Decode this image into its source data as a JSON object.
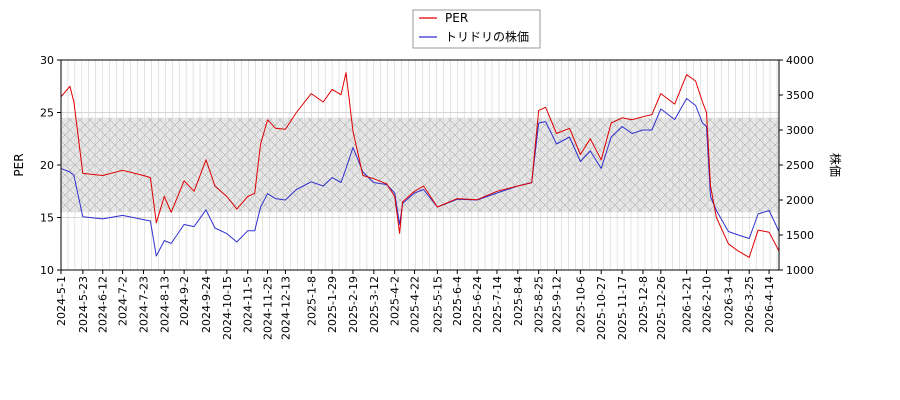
{
  "chart_data": {
    "type": "line",
    "legend": {
      "placement": "top-center",
      "entries": [
        "PER",
        "トリドリの株価"
      ]
    },
    "colors": {
      "PER": "#e00000",
      "price": "#3030d0",
      "band_fill": "#e6e6e6",
      "grid": "#c8c8c8"
    },
    "ylabel_left": "PER",
    "ylabel_right": "株価",
    "ylim_left": [
      10,
      30
    ],
    "ylim_right": [
      1000,
      4000
    ],
    "yticks_left": [
      "10",
      "15",
      "20",
      "25",
      "30"
    ],
    "yticks_right": [
      "1000",
      "1500",
      "2000",
      "2500",
      "3000",
      "3500",
      "4000"
    ],
    "per_band": [
      15.5,
      24.5
    ],
    "x_start": "2024-5-1",
    "x_end": "2026-4-24",
    "x_tick_labels": [
      "2024-5-1",
      "2024-5-23",
      "2024-6-12",
      "2024-7-2",
      "2024-7-23",
      "2024-8-13",
      "2024-9-2",
      "2024-9-24",
      "2024-10-15",
      "2024-11-5",
      "2024-11-25",
      "2024-12-13",
      "2025-1-8",
      "2025-1-29",
      "2025-2-19",
      "2025-3-12",
      "2025-4-2",
      "2025-4-22",
      "2025-5-15",
      "2025-6-4",
      "2025-6-24",
      "2025-7-14",
      "2025-8-4",
      "2025-8-25",
      "2025-9-12",
      "2025-10-6",
      "2025-10-27",
      "2025-11-17",
      "2025-12-8",
      "2025-12-26",
      "2026-1-21",
      "2026-2-10",
      "2026-3-4",
      "2026-3-25",
      "2026-4-14"
    ],
    "series": [
      {
        "name": "PER",
        "axis": "left",
        "x": [
          "2024-5-1",
          "2024-5-10",
          "2024-5-14",
          "2024-5-23",
          "2024-6-12",
          "2024-7-2",
          "2024-7-23",
          "2024-7-30",
          "2024-8-5",
          "2024-8-13",
          "2024-8-20",
          "2024-9-2",
          "2024-9-12",
          "2024-9-24",
          "2024-10-3",
          "2024-10-15",
          "2024-10-25",
          "2024-11-5",
          "2024-11-12",
          "2024-11-18",
          "2024-11-25",
          "2024-12-3",
          "2024-12-13",
          "2024-12-24",
          "2025-1-8",
          "2025-1-20",
          "2025-1-29",
          "2025-2-7",
          "2025-2-12",
          "2025-2-19",
          "2025-3-1",
          "2025-3-12",
          "2025-3-25",
          "2025-4-2",
          "2025-4-7",
          "2025-4-10",
          "2025-4-22",
          "2025-5-1",
          "2025-5-15",
          "2025-6-4",
          "2025-6-24",
          "2025-7-14",
          "2025-8-4",
          "2025-8-18",
          "2025-8-25",
          "2025-9-1",
          "2025-9-12",
          "2025-9-25",
          "2025-10-6",
          "2025-10-16",
          "2025-10-27",
          "2025-11-6",
          "2025-11-17",
          "2025-11-27",
          "2025-12-8",
          "2025-12-17",
          "2025-12-26",
          "2026-1-9",
          "2026-1-21",
          "2026-1-30",
          "2026-2-6",
          "2026-2-10",
          "2026-2-14",
          "2026-2-20",
          "2026-3-4",
          "2026-3-14",
          "2026-3-25",
          "2026-4-3",
          "2026-4-14",
          "2026-4-24"
        ],
        "values": [
          26.5,
          27.5,
          26.0,
          19.2,
          19.0,
          19.5,
          19.0,
          18.8,
          14.5,
          17.0,
          15.5,
          18.5,
          17.5,
          20.5,
          18.0,
          17.0,
          15.8,
          17.0,
          17.3,
          22.0,
          24.3,
          23.5,
          23.4,
          25.0,
          26.8,
          26.0,
          27.2,
          26.7,
          28.8,
          23.2,
          19.0,
          18.7,
          18.2,
          17.0,
          13.5,
          16.5,
          17.5,
          18.0,
          16.0,
          16.8,
          16.7,
          17.5,
          18.0,
          18.3,
          25.2,
          25.5,
          23.0,
          23.5,
          21.0,
          22.5,
          20.5,
          24.0,
          24.5,
          24.3,
          24.6,
          24.8,
          26.8,
          25.8,
          28.6,
          28.0,
          26.0,
          25.0,
          18.0,
          15.0,
          12.5,
          11.8,
          11.2,
          13.8,
          13.6,
          11.8
        ]
      },
      {
        "name": "トリドリの株価",
        "axis": "right",
        "x": [
          "2024-5-1",
          "2024-5-10",
          "2024-5-14",
          "2024-5-23",
          "2024-6-12",
          "2024-7-2",
          "2024-7-23",
          "2024-7-30",
          "2024-8-5",
          "2024-8-13",
          "2024-8-20",
          "2024-9-2",
          "2024-9-12",
          "2024-9-24",
          "2024-10-3",
          "2024-10-15",
          "2024-10-25",
          "2024-11-5",
          "2024-11-12",
          "2024-11-18",
          "2024-11-25",
          "2024-12-3",
          "2024-12-13",
          "2024-12-24",
          "2025-1-8",
          "2025-1-20",
          "2025-1-29",
          "2025-2-7",
          "2025-2-12",
          "2025-2-19",
          "2025-3-1",
          "2025-3-12",
          "2025-3-25",
          "2025-4-2",
          "2025-4-7",
          "2025-4-10",
          "2025-4-22",
          "2025-5-1",
          "2025-5-15",
          "2025-6-4",
          "2025-6-24",
          "2025-7-14",
          "2025-8-4",
          "2025-8-18",
          "2025-8-25",
          "2025-9-1",
          "2025-9-12",
          "2025-9-25",
          "2025-10-6",
          "2025-10-16",
          "2025-10-27",
          "2025-11-6",
          "2025-11-17",
          "2025-11-27",
          "2025-12-8",
          "2025-12-17",
          "2025-12-26",
          "2026-1-9",
          "2026-1-21",
          "2026-1-30",
          "2026-2-6",
          "2026-2-10",
          "2026-2-14",
          "2026-2-20",
          "2026-3-4",
          "2026-3-14",
          "2026-3-25",
          "2026-4-3",
          "2026-4-14",
          "2026-4-24"
        ],
        "values": [
          2450,
          2400,
          2350,
          1760,
          1730,
          1780,
          1720,
          1700,
          1200,
          1420,
          1380,
          1650,
          1620,
          1860,
          1600,
          1520,
          1400,
          1560,
          1560,
          1900,
          2090,
          2020,
          2000,
          2150,
          2260,
          2200,
          2320,
          2250,
          2450,
          2750,
          2400,
          2250,
          2220,
          2100,
          1650,
          1950,
          2100,
          2150,
          1900,
          2010,
          2000,
          2100,
          2200,
          2250,
          3100,
          3120,
          2800,
          2900,
          2550,
          2700,
          2450,
          2900,
          3050,
          2950,
          3000,
          3000,
          3300,
          3150,
          3450,
          3350,
          3100,
          3050,
          2050,
          1850,
          1550,
          1500,
          1450,
          1800,
          1850,
          1550
        ]
      }
    ]
  }
}
